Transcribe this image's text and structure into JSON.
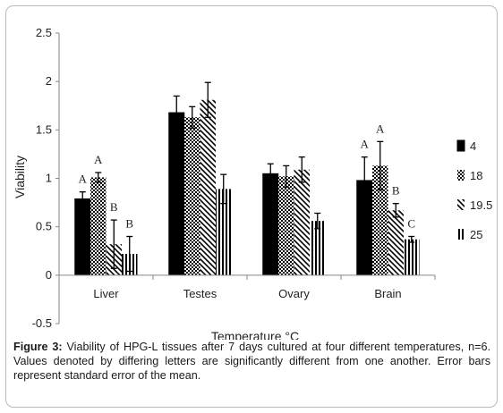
{
  "chart_data": {
    "type": "bar",
    "title": "",
    "xlabel": "Temperature °C",
    "ylabel": "Viability",
    "ylim": [
      -0.5,
      2.5
    ],
    "yticks": [
      "-0.5",
      "0",
      "0.5",
      "1",
      "1.5",
      "2",
      "2.5"
    ],
    "categories": [
      "Liver",
      "Testes",
      "Ovary",
      "Brain"
    ],
    "legend_position": "right",
    "series": [
      {
        "name": "4",
        "pattern": "solid",
        "values": [
          0.79,
          1.68,
          1.05,
          0.98
        ],
        "errors": [
          0.07,
          0.17,
          0.1,
          0.24
        ]
      },
      {
        "name": "18",
        "pattern": "checker",
        "values": [
          1.01,
          1.63,
          1.02,
          1.13
        ],
        "errors": [
          0.05,
          0.11,
          0.11,
          0.25
        ]
      },
      {
        "name": "19.5",
        "pattern": "diagonal",
        "values": [
          0.32,
          1.81,
          1.09,
          0.67
        ],
        "errors": [
          0.25,
          0.18,
          0.13,
          0.07
        ]
      },
      {
        "name": "25",
        "pattern": "vertical",
        "values": [
          0.22,
          0.89,
          0.56,
          0.37
        ],
        "errors": [
          0.18,
          0.15,
          0.08,
          0.03
        ]
      }
    ],
    "significance_letters": [
      {
        "category": "Liver",
        "series": "4",
        "text": "A"
      },
      {
        "category": "Liver",
        "series": "18",
        "text": "A"
      },
      {
        "category": "Liver",
        "series": "19.5",
        "text": "B"
      },
      {
        "category": "Liver",
        "series": "25",
        "text": "B"
      },
      {
        "category": "Brain",
        "series": "4",
        "text": "A"
      },
      {
        "category": "Brain",
        "series": "18",
        "text": "A"
      },
      {
        "category": "Brain",
        "series": "19.5",
        "text": "B"
      },
      {
        "category": "Brain",
        "series": "25",
        "text": "C"
      }
    ]
  },
  "caption": {
    "label": "Figure 3:",
    "text": " Viability of HPG-L tissues after 7 days cultured at four different temperatures, n=6. Values denoted by differing letters are significantly different from one another. Error bars represent standard error of the mean."
  },
  "colors": {
    "bar": "#000000",
    "frame": "#b9b9b9",
    "axis": "#868686"
  }
}
